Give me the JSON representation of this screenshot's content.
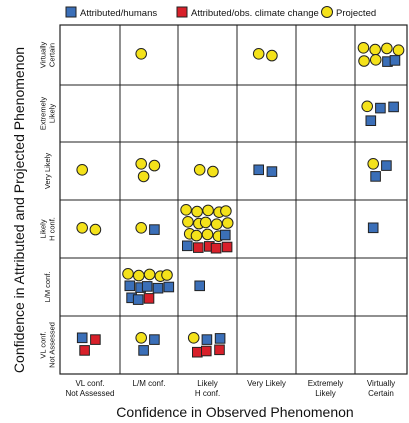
{
  "chart_data": {
    "type": "scatter",
    "title": "",
    "xlabel": "Confidence in Observed Phenomenon",
    "ylabel": "Confidence in Attributed and Projected Phenomenon",
    "x_categories": [
      "VL conf.\nNot Assessed",
      "L/M conf.",
      "Likely\nH conf.",
      "Very Likely",
      "Extremely\nLikely",
      "Virtually\nCertain"
    ],
    "y_categories": [
      "VL conf.\nNot Assessed",
      "L/M conf.",
      "Likely\nH conf.",
      "Very Likely",
      "Extremely\nLikely",
      "Virtually\nCertain"
    ],
    "legend_position": "top",
    "grid": true,
    "series": [
      {
        "name": "Attributed/humans",
        "marker": "square",
        "color": "#3b6fb8",
        "points": [
          {
            "x": "VL conf.\nNot Assessed",
            "y": "VL conf.\nNot Assessed",
            "count": 1
          },
          {
            "x": "L/M conf.",
            "y": "VL conf.\nNot Assessed",
            "count": 2
          },
          {
            "x": "Likely\nH conf.",
            "y": "VL conf.\nNot Assessed",
            "count": 2
          },
          {
            "x": "L/M conf.",
            "y": "L/M conf.",
            "count": 7
          },
          {
            "x": "Likely\nH conf.",
            "y": "L/M conf.",
            "count": 1
          },
          {
            "x": "L/M conf.",
            "y": "Likely\nH conf.",
            "count": 1
          },
          {
            "x": "Likely\nH conf.",
            "y": "Likely\nH conf.",
            "count": 2
          },
          {
            "x": "Very Likely",
            "y": "Very Likely",
            "count": 2
          },
          {
            "x": "Virtually\nCertain",
            "y": "Very Likely",
            "count": 2
          },
          {
            "x": "Virtually\nCertain",
            "y": "Likely\nH conf.",
            "count": 1
          },
          {
            "x": "Virtually\nCertain",
            "y": "Extremely\nLikely",
            "count": 3
          },
          {
            "x": "Virtually\nCertain",
            "y": "Virtually\nCertain",
            "count": 2
          }
        ]
      },
      {
        "name": "Attributed/obs. climate change",
        "marker": "square",
        "color": "#d8202a",
        "points": [
          {
            "x": "VL conf.\nNot Assessed",
            "y": "VL conf.\nNot Assessed",
            "count": 2
          },
          {
            "x": "Likely\nH conf.",
            "y": "VL conf.\nNot Assessed",
            "count": 3
          },
          {
            "x": "L/M conf.",
            "y": "L/M conf.",
            "count": 1
          },
          {
            "x": "Likely\nH conf.",
            "y": "Likely\nH conf.",
            "count": 4
          }
        ]
      },
      {
        "name": "Projected",
        "marker": "circle",
        "color": "#f4e21a",
        "points": [
          {
            "x": "L/M conf.",
            "y": "VL conf.\nNot Assessed",
            "count": 1
          },
          {
            "x": "Likely\nH conf.",
            "y": "VL conf.\nNot Assessed",
            "count": 1
          },
          {
            "x": "L/M conf.",
            "y": "L/M conf.",
            "count": 5
          },
          {
            "x": "VL conf.\nNot Assessed",
            "y": "Likely\nH conf.",
            "count": 2
          },
          {
            "x": "L/M conf.",
            "y": "Likely\nH conf.",
            "count": 1
          },
          {
            "x": "Likely\nH conf.",
            "y": "Likely\nH conf.",
            "count": 14
          },
          {
            "x": "VL conf.\nNot Assessed",
            "y": "Very Likely",
            "count": 1
          },
          {
            "x": "L/M conf.",
            "y": "Very Likely",
            "count": 3
          },
          {
            "x": "Likely\nH conf.",
            "y": "Very Likely",
            "count": 2
          },
          {
            "x": "Virtually\nCertain",
            "y": "Very Likely",
            "count": 1
          },
          {
            "x": "Virtually\nCertain",
            "y": "Extremely\nLikely",
            "count": 1
          },
          {
            "x": "L/M conf.",
            "y": "Virtually\nCertain",
            "count": 1
          },
          {
            "x": "Very Likely",
            "y": "Virtually\nCertain",
            "count": 2
          },
          {
            "x": "Virtually\nCertain",
            "y": "Virtually\nCertain",
            "count": 6
          }
        ]
      }
    ]
  }
}
